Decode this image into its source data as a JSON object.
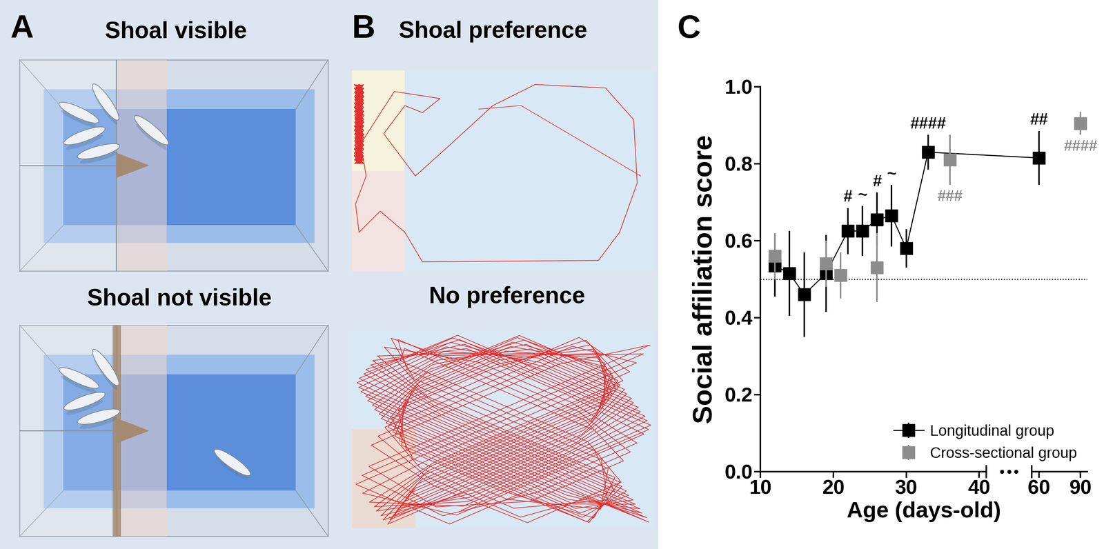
{
  "diagram": {
    "panel_a": {
      "label": "A",
      "top_title": "Shoal visible",
      "bottom_title": "Shoal not visible"
    },
    "panel_b": {
      "label": "B",
      "top_title": "Shoal preference",
      "bottom_title": "No preference"
    }
  },
  "chart_data": {
    "panel_label": "C",
    "type": "scatter",
    "x_label": "Age (days-old)",
    "y_label": "Social affiliation score",
    "xlim": [
      10,
      95
    ],
    "xticks": [
      10,
      20,
      30,
      40,
      60,
      90
    ],
    "x_break": [
      40,
      60
    ],
    "ylim": [
      0,
      1.0
    ],
    "yticks": [
      {
        "value": 0,
        "label": "0.0"
      },
      0.2,
      0.4,
      0.6,
      0.8,
      {
        "value": 1.0,
        "label": "1.0"
      }
    ],
    "chance_level": 0.5,
    "legend": "lower right",
    "series": [
      {
        "name": "Longitudinal group",
        "color": "#000000",
        "marker": "square",
        "type": "line",
        "x": [
          12,
          14,
          16,
          19,
          22,
          24,
          26,
          28,
          30,
          33,
          60
        ],
        "values": [
          0.535,
          0.515,
          0.46,
          0.515,
          0.625,
          0.625,
          0.655,
          0.665,
          0.58,
          0.83,
          0.815
        ],
        "errors": [
          0.08,
          0.11,
          0.11,
          0.1,
          0.06,
          0.065,
          0.07,
          0.08,
          0.05,
          0.045,
          0.07
        ],
        "annotations": [
          null,
          null,
          null,
          null,
          "#",
          "~",
          "#",
          "~",
          null,
          "####",
          "##"
        ]
      },
      {
        "name": "Cross-sectional group",
        "color": "#8c8c8c",
        "marker": "square",
        "type": "scatter",
        "x": [
          12,
          19,
          21,
          26,
          36,
          90
        ],
        "values": [
          0.56,
          0.54,
          0.51,
          0.53,
          0.81,
          0.905
        ],
        "errors": [
          0.06,
          0.06,
          0.06,
          0.09,
          0.065,
          0.03
        ],
        "annotations": [
          null,
          null,
          null,
          null,
          "###",
          "####"
        ]
      }
    ]
  }
}
